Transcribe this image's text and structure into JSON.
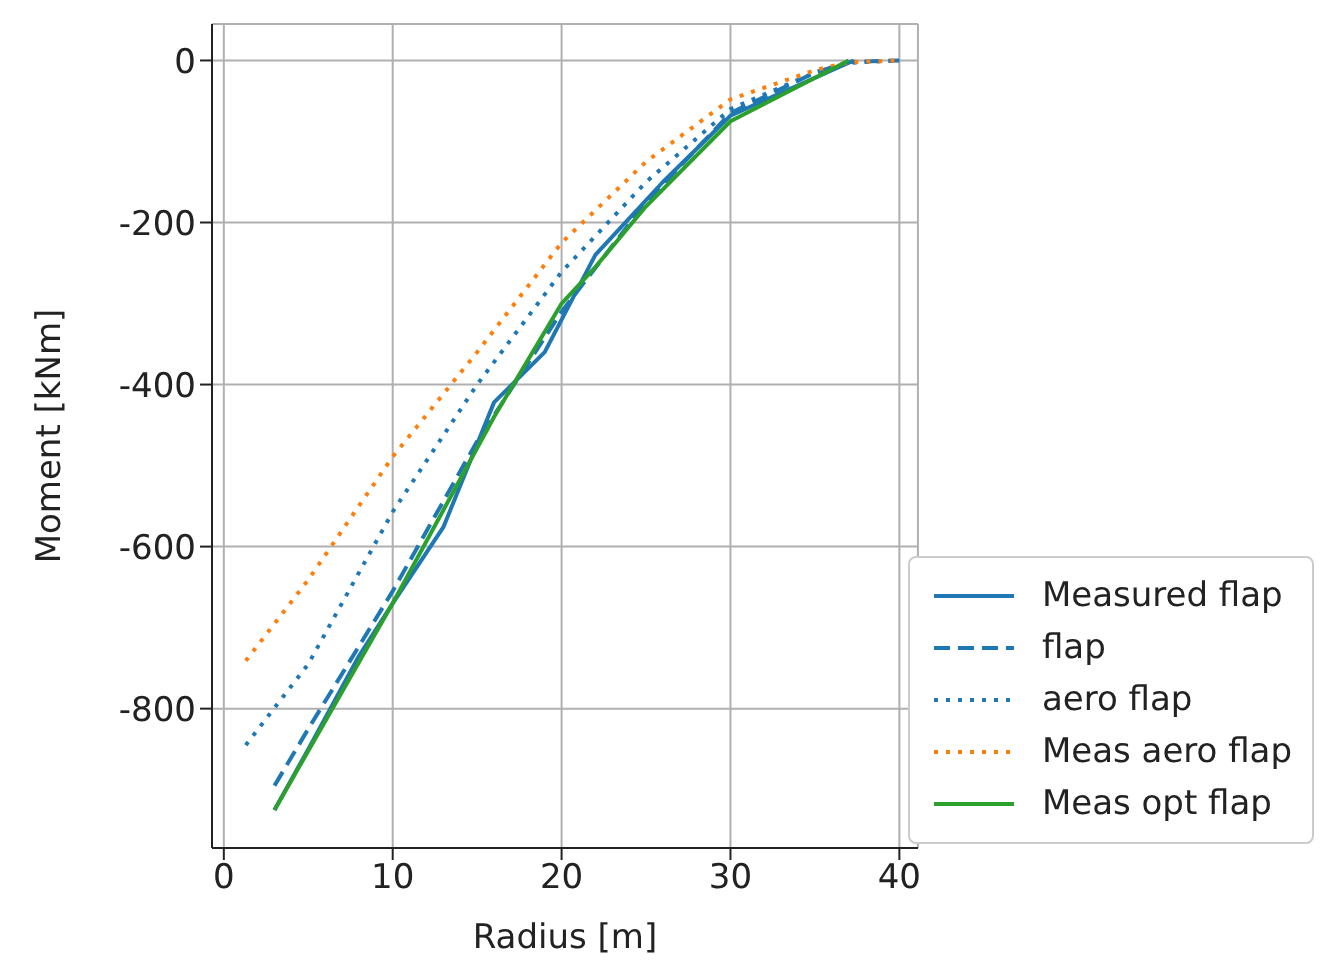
{
  "chart_data": {
    "type": "line",
    "xlabel": "Radius [m]",
    "ylabel": "Moment [kNm]",
    "xlim": [
      -0.7,
      41.1
    ],
    "ylim": [
      -972,
      45
    ],
    "xticks": [
      0,
      10,
      20,
      30,
      40
    ],
    "yticks": [
      -800,
      -600,
      -400,
      -200,
      0
    ],
    "grid": true,
    "legend": "bottom right",
    "series": [
      {
        "name": "Measured flap",
        "color": "#1f77b4",
        "line_style": "solid",
        "x": [
          3,
          5,
          8,
          10,
          13,
          16,
          19,
          22,
          26,
          30,
          37.3
        ],
        "values": [
          -925,
          -850,
          -735,
          -670,
          -576,
          -422,
          -360,
          -240,
          -150,
          -68,
          0
        ]
      },
      {
        "name": "flap",
        "color": "#1f77b4",
        "line_style": "dashed",
        "x": [
          3,
          5,
          10,
          15,
          20,
          25,
          30,
          35,
          37,
          40
        ],
        "values": [
          -895,
          -825,
          -655,
          -470,
          -310,
          -175,
          -65,
          -15,
          -2,
          0
        ]
      },
      {
        "name": "aero flap",
        "color": "#1f77b4",
        "line_style": "dotted",
        "x": [
          1.3,
          5,
          10,
          15,
          20,
          25,
          30,
          35,
          37,
          40
        ],
        "values": [
          -845,
          -745,
          -557,
          -400,
          -261,
          -150,
          -60,
          -15,
          -3,
          0
        ]
      },
      {
        "name": "Meas aero flap",
        "color": "#ff7f0e",
        "line_style": "dotted",
        "x": [
          1.3,
          5,
          10,
          15,
          20,
          25,
          30,
          35,
          37,
          40
        ],
        "values": [
          -741,
          -641,
          -489,
          -360,
          -225,
          -125,
          -48,
          -12,
          -2,
          0
        ]
      },
      {
        "name": "Meas opt flap",
        "color": "#2ca02c",
        "line_style": "solid",
        "x": [
          3,
          10,
          16,
          20,
          22,
          25,
          30,
          37
        ],
        "values": [
          -925,
          -670,
          -440,
          -300,
          -255,
          -180,
          -75,
          0
        ]
      }
    ]
  }
}
